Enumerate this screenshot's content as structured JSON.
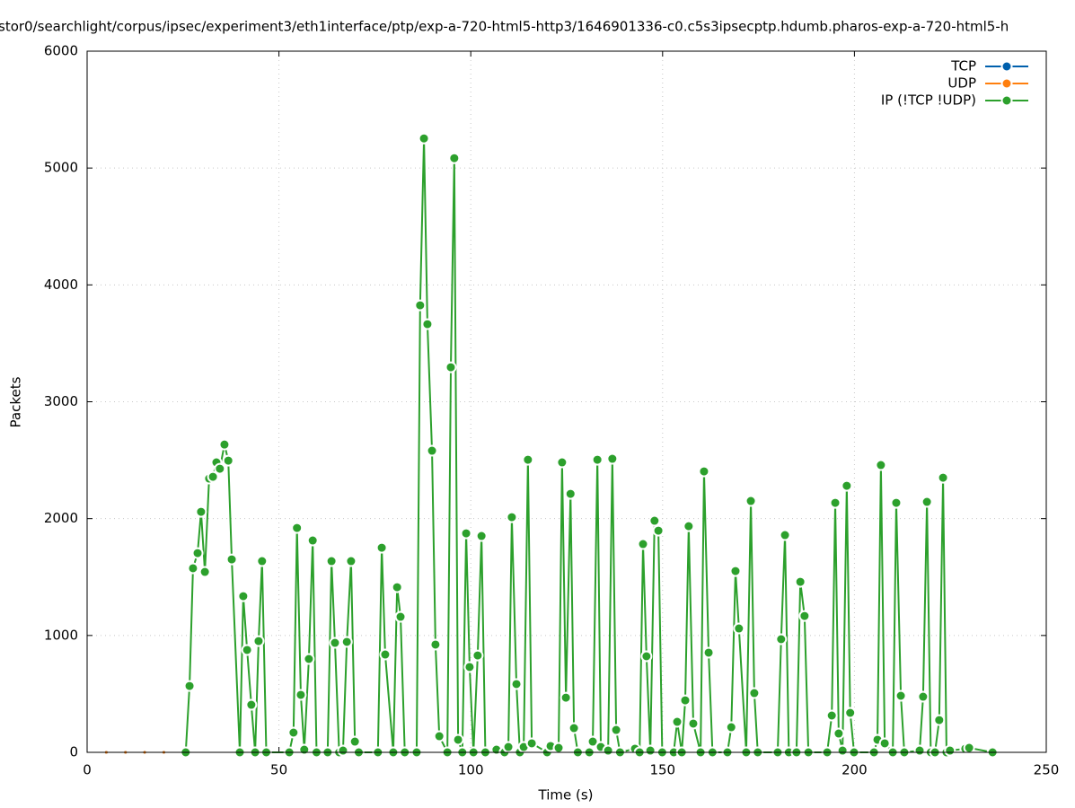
{
  "chart_data": {
    "type": "line",
    "title": "stor0/searchlight/corpus/ipsec/experiment3/eth1interface/ptp/exp-a-720-html5-http3/1646901336-c0.c5s3ipsecptp.hdumb.pharos-exp-a-720-html5-h",
    "x_label": "Time (s)",
    "y_label": "Packets",
    "xlim": [
      0,
      250
    ],
    "xticks": [
      0,
      50,
      100,
      150,
      200,
      250
    ],
    "ylim": [
      0,
      6000
    ],
    "yticks": [
      0,
      1000,
      2000,
      3000,
      4000,
      5000,
      6000
    ],
    "grid": true,
    "legend": "top-right",
    "series": [
      {
        "name": "TCP",
        "color": "#0060ad",
        "x": [
          5,
          10,
          15,
          20,
          25
        ],
        "values": [
          0,
          0,
          0,
          0,
          0
        ]
      },
      {
        "name": "UDP",
        "color": "#ff7f0e",
        "x": [
          5,
          10,
          15,
          20,
          25
        ],
        "values": [
          0,
          0,
          0,
          0,
          0
        ]
      },
      {
        "name": "IP (!TCP  !UDP)",
        "color": "#2ca02c",
        "x": [
          25.7,
          26.7,
          27.6,
          28.8,
          29.7,
          30.7,
          31.8,
          32.8,
          33.7,
          34.6,
          35.8,
          36.8,
          37.7,
          39.8,
          40.7,
          41.7,
          42.8,
          43.8,
          44.7,
          45.6,
          46.7,
          52.7,
          53.8,
          54.7,
          55.7,
          56.6,
          57.8,
          58.8,
          59.8,
          62.7,
          63.7,
          64.6,
          65.7,
          66.7,
          67.7,
          68.8,
          69.8,
          70.8,
          75.8,
          76.8,
          77.7,
          79.8,
          80.8,
          81.7,
          82.8,
          85.9,
          86.8,
          87.8,
          88.7,
          89.9,
          90.8,
          91.8,
          93.9,
          94.8,
          95.7,
          96.7,
          97.8,
          98.8,
          99.7,
          100.7,
          101.8,
          102.8,
          103.8,
          106.7,
          108.8,
          109.8,
          110.7,
          111.9,
          112.8,
          113.8,
          114.9,
          115.9,
          119.9,
          120.8,
          122.9,
          123.8,
          124.8,
          126.0,
          126.9,
          127.9,
          130.9,
          131.8,
          133.0,
          133.9,
          135.8,
          136.9,
          137.9,
          138.9,
          142.8,
          144.0,
          144.9,
          145.8,
          146.8,
          147.9,
          148.9,
          149.9,
          152.9,
          153.8,
          155.0,
          155.9,
          156.8,
          158.0,
          159.9,
          160.8,
          162.0,
          163.0,
          166.9,
          167.9,
          169.0,
          169.9,
          171.8,
          173.0,
          173.9,
          174.8,
          180.0,
          180.9,
          181.9,
          182.9,
          184.9,
          185.9,
          187.0,
          188.0,
          192.9,
          194.1,
          195.0,
          195.9,
          196.9,
          198.0,
          198.9,
          199.9,
          205.1,
          206.0,
          206.9,
          207.9,
          210.0,
          210.9,
          212.1,
          213.0,
          217.0,
          217.9,
          218.9,
          219.9,
          221.0,
          222.1,
          223.1,
          224.0,
          224.9,
          228.9,
          229.9,
          236.0
        ],
        "values": [
          0,
          568,
          1575,
          1705,
          2058,
          1544,
          2343,
          2358,
          2481,
          2427,
          2634,
          2496,
          1651,
          0,
          1336,
          876,
          407,
          0,
          952,
          1636,
          0,
          0,
          169,
          1920,
          492,
          23,
          799,
          1813,
          0,
          0,
          1636,
          937,
          0,
          15,
          945,
          1636,
          92,
          0,
          0,
          1751,
          837,
          0,
          1413,
          1160,
          0,
          0,
          3825,
          5253,
          3664,
          2581,
          922,
          138,
          0,
          3295,
          5084,
          108,
          0,
          1874,
          730,
          0,
          829,
          1851,
          0,
          23,
          0,
          46,
          2012,
          584,
          0,
          46,
          2504,
          77,
          0,
          54,
          38,
          2481,
          468,
          2212,
          207,
          0,
          0,
          92,
          2504,
          46,
          15,
          2512,
          192,
          0,
          31,
          0,
          1782,
          822,
          15,
          1982,
          1897,
          0,
          0,
          261,
          0,
          445,
          1935,
          246,
          0,
          2404,
          853,
          0,
          0,
          215,
          1551,
          1060,
          0,
          2151,
          507,
          0,
          0,
          968,
          1859,
          0,
          0,
          1459,
          1167,
          0,
          0,
          315,
          2135,
          161,
          15,
          2281,
          338,
          0,
          0,
          108,
          2458,
          77,
          0,
          2135,
          484,
          0,
          15,
          476,
          2143,
          0,
          0,
          276,
          2350,
          0,
          15,
          31,
          38,
          0
        ]
      }
    ]
  }
}
